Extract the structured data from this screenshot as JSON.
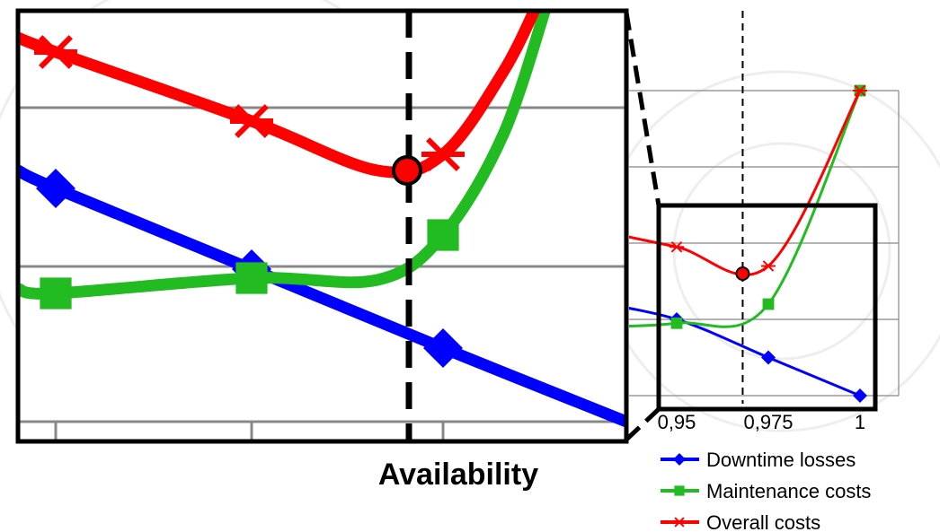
{
  "chart_data": {
    "type": "line",
    "xlabel": "Availability",
    "x_ticks": [
      "0,95",
      "0,975",
      "1"
    ],
    "x": [
      0.925,
      0.95,
      0.975,
      1.0
    ],
    "ylim": [
      0,
      8
    ],
    "y_gridlines": [
      0,
      2,
      4,
      6,
      8
    ],
    "series": [
      {
        "name": "Downtime losses",
        "color": "#0000ff",
        "marker": "diamond",
        "values": [
          2.5,
          2.0,
          1.0,
          0.0
        ]
      },
      {
        "name": "Maintenance costs",
        "color": "#22bb22",
        "marker": "square",
        "values": [
          1.8,
          1.9,
          2.4,
          8.0
        ]
      },
      {
        "name": "Overall costs",
        "color": "#ff0000",
        "marker": "asterisk",
        "values": [
          4.4,
          3.9,
          3.4,
          8.0
        ]
      }
    ],
    "optimum": {
      "x": 0.968,
      "y": 3.2,
      "color": "#ff0000"
    },
    "zoom_inset": true,
    "legend_position": "bottom-right"
  }
}
